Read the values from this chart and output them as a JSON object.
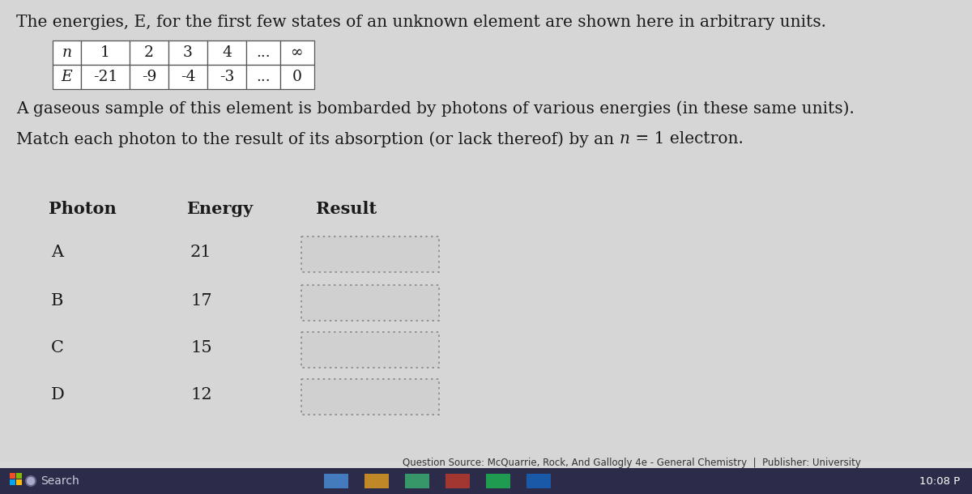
{
  "bg_color": "#d8d8d8",
  "content_bg": "#d4d4d4",
  "title_text": "The energies, E, for the first few states of an unknown element are shown here in arbitrary units.",
  "table_n_row": [
    "n",
    "1",
    "2",
    "3",
    "4",
    "...",
    "∞"
  ],
  "table_e_row": [
    "E",
    "-21",
    "-9",
    "-4",
    "-3",
    "...",
    "0"
  ],
  "paragraph1": "A gaseous sample of this element is bombarded by photons of various energies (in these same units).",
  "paragraph2_pre": "Match each photon to the result of its absorption (or lack thereof) by an ",
  "paragraph2_italic": "n",
  "paragraph2_post": " = 1 electron.",
  "col_photon": "Photon",
  "col_energy": "Energy",
  "col_result": "Result",
  "photons": [
    "A",
    "B",
    "C",
    "D"
  ],
  "energies": [
    "21",
    "17",
    "15",
    "12"
  ],
  "footer": "Question Source: McQuarrie, Rock, And Gallogly 4e - General Chemistry  |  Publisher: University",
  "taskbar_bg": "#3a3a5c",
  "time_text": "10:08 P",
  "search_label": "Search",
  "text_color": "#1a1a1a",
  "table_border": "#555555",
  "dashed_box_color": "#888888",
  "font_family": "DejaVu Serif"
}
